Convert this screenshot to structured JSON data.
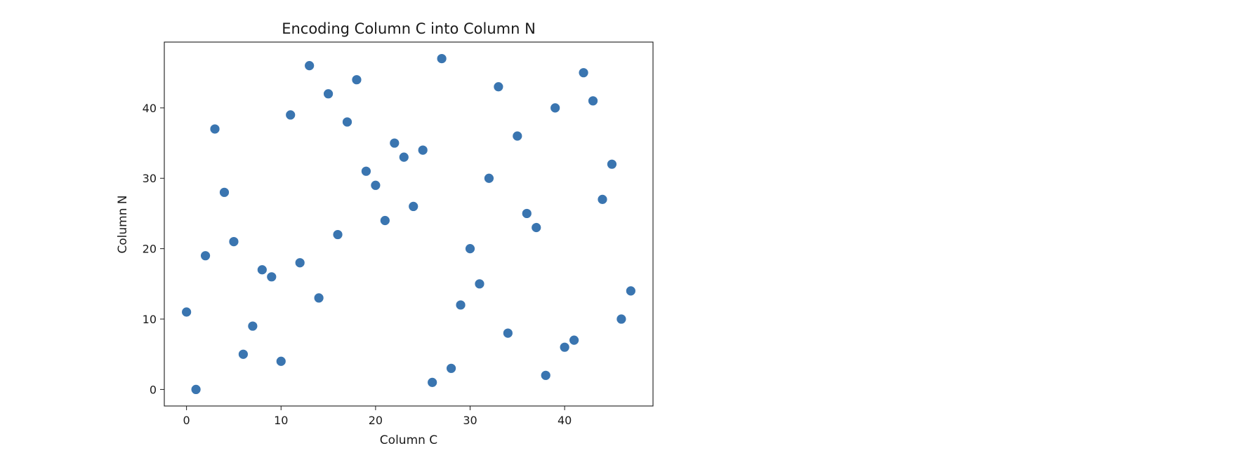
{
  "chart_data": {
    "type": "scatter",
    "title": "Encoding Column C into Column N",
    "xlabel": "Column C",
    "ylabel": "Column N",
    "xlim": [
      -2.35,
      49.35
    ],
    "ylim": [
      -2.35,
      49.35
    ],
    "xticks": [
      0,
      10,
      20,
      30,
      40
    ],
    "yticks": [
      0,
      10,
      20,
      30,
      40
    ],
    "grid": false,
    "marker_color": "#3a75b0",
    "points": [
      {
        "x": 0,
        "y": 11
      },
      {
        "x": 1,
        "y": 0
      },
      {
        "x": 2,
        "y": 19
      },
      {
        "x": 3,
        "y": 37
      },
      {
        "x": 4,
        "y": 28
      },
      {
        "x": 5,
        "y": 21
      },
      {
        "x": 6,
        "y": 5
      },
      {
        "x": 7,
        "y": 9
      },
      {
        "x": 8,
        "y": 17
      },
      {
        "x": 9,
        "y": 16
      },
      {
        "x": 10,
        "y": 4
      },
      {
        "x": 11,
        "y": 39
      },
      {
        "x": 12,
        "y": 18
      },
      {
        "x": 13,
        "y": 46
      },
      {
        "x": 14,
        "y": 13
      },
      {
        "x": 15,
        "y": 42
      },
      {
        "x": 16,
        "y": 22
      },
      {
        "x": 17,
        "y": 38
      },
      {
        "x": 18,
        "y": 44
      },
      {
        "x": 19,
        "y": 31
      },
      {
        "x": 20,
        "y": 29
      },
      {
        "x": 21,
        "y": 24
      },
      {
        "x": 22,
        "y": 35
      },
      {
        "x": 23,
        "y": 33
      },
      {
        "x": 24,
        "y": 26
      },
      {
        "x": 25,
        "y": 34
      },
      {
        "x": 26,
        "y": 1
      },
      {
        "x": 27,
        "y": 47
      },
      {
        "x": 28,
        "y": 3
      },
      {
        "x": 29,
        "y": 12
      },
      {
        "x": 30,
        "y": 20
      },
      {
        "x": 31,
        "y": 15
      },
      {
        "x": 32,
        "y": 30
      },
      {
        "x": 33,
        "y": 43
      },
      {
        "x": 34,
        "y": 8
      },
      {
        "x": 35,
        "y": 36
      },
      {
        "x": 36,
        "y": 25
      },
      {
        "x": 37,
        "y": 23
      },
      {
        "x": 38,
        "y": 2
      },
      {
        "x": 39,
        "y": 40
      },
      {
        "x": 40,
        "y": 6
      },
      {
        "x": 41,
        "y": 7
      },
      {
        "x": 42,
        "y": 45
      },
      {
        "x": 43,
        "y": 41
      },
      {
        "x": 44,
        "y": 27
      },
      {
        "x": 45,
        "y": 32
      },
      {
        "x": 46,
        "y": 10
      },
      {
        "x": 47,
        "y": 14
      }
    ]
  }
}
